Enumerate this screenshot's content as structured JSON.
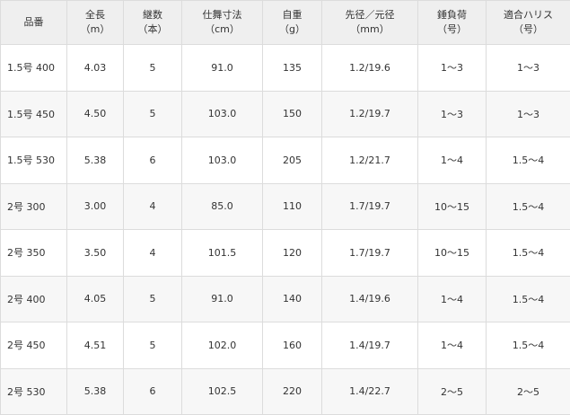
{
  "table": {
    "header": [
      [
        "品番"
      ],
      [
        "全長",
        "（m）"
      ],
      [
        "継数",
        "（本）"
      ],
      [
        "仕舞寸法",
        "（cm）"
      ],
      [
        "自重",
        "（g）"
      ],
      [
        "先径／元径",
        "（mm）"
      ],
      [
        "錘負荷",
        "（号）"
      ],
      [
        "適合ハリス",
        "（号）"
      ]
    ],
    "rows": [
      [
        "1.5号 400",
        "4.03",
        "5",
        "91.0",
        "135",
        "1.2/19.6",
        "1〜3",
        "1〜3"
      ],
      [
        "1.5号 450",
        "4.50",
        "5",
        "103.0",
        "150",
        "1.2/19.7",
        "1〜3",
        "1〜3"
      ],
      [
        "1.5号 530",
        "5.38",
        "6",
        "103.0",
        "205",
        "1.2/21.7",
        "1〜4",
        "1.5〜4"
      ],
      [
        "2号 300",
        "3.00",
        "4",
        "85.0",
        "110",
        "1.7/19.7",
        "10〜15",
        "1.5〜4"
      ],
      [
        "2号 350",
        "3.50",
        "4",
        "101.5",
        "120",
        "1.7/19.7",
        "10〜15",
        "1.5〜4"
      ],
      [
        "2号 400",
        "4.05",
        "5",
        "91.0",
        "140",
        "1.4/19.6",
        "1〜4",
        "1.5〜4"
      ],
      [
        "2号 450",
        "4.51",
        "5",
        "102.0",
        "160",
        "1.4/19.7",
        "1〜4",
        "1.5〜4"
      ],
      [
        "2号 530",
        "5.38",
        "6",
        "102.5",
        "220",
        "1.4/22.7",
        "2〜5",
        "2〜5"
      ]
    ]
  }
}
